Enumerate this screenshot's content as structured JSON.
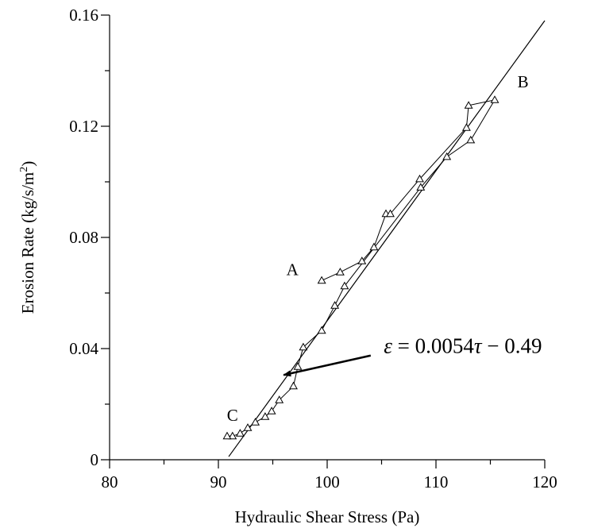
{
  "chart_data": {
    "type": "scatter",
    "title": "",
    "xlabel": "Hydraulic Shear Stress (Pa)",
    "ylabel_main": "Erosion Rate (kg/s/m",
    "ylabel_sup": "2",
    "ylabel_end": ")",
    "xlim": [
      80,
      120
    ],
    "ylim": [
      0,
      0.16
    ],
    "xticks": [
      80,
      90,
      100,
      110,
      120
    ],
    "xtick_labels": [
      "80",
      "90",
      "100",
      "110",
      "120"
    ],
    "yticks": [
      0,
      0.04,
      0.08,
      0.12,
      0.16
    ],
    "ytick_labels": [
      "0",
      "0.04",
      "0.08",
      "0.12",
      "0.16"
    ],
    "grid": false,
    "series": [
      {
        "marker": "triangle",
        "connected": true,
        "points": [
          [
            99.5,
            0.0645
          ],
          [
            101.2,
            0.0675
          ],
          [
            103.2,
            0.0715
          ],
          [
            104.3,
            0.0765
          ],
          [
            105.4,
            0.0885
          ],
          [
            105.8,
            0.0885
          ],
          [
            108.5,
            0.101
          ],
          [
            112.8,
            0.1195
          ],
          [
            113.0,
            0.1275
          ],
          [
            115.4,
            0.1295
          ],
          [
            113.2,
            0.115
          ],
          [
            111.0,
            0.109
          ],
          [
            108.6,
            0.098
          ],
          [
            101.6,
            0.0625
          ],
          [
            100.7,
            0.0555
          ],
          [
            99.5,
            0.0465
          ],
          [
            97.8,
            0.0405
          ],
          [
            97.3,
            0.0335
          ],
          [
            96.9,
            0.0265
          ],
          [
            95.6,
            0.0215
          ],
          [
            94.9,
            0.0175
          ],
          [
            94.3,
            0.0155
          ],
          [
            93.4,
            0.0135
          ],
          [
            92.7,
            0.0115
          ],
          [
            92.0,
            0.0095
          ],
          [
            91.3,
            0.0085
          ],
          [
            90.8,
            0.0085
          ]
        ]
      }
    ],
    "fit_line": {
      "slope": 0.0054,
      "intercept": -0.49,
      "x_range": [
        90.95,
        120
      ]
    },
    "point_labels": [
      {
        "text": "A",
        "x": 96.8,
        "y": 0.0665
      },
      {
        "text": "B",
        "x": 118.0,
        "y": 0.134
      },
      {
        "text": "C",
        "x": 91.3,
        "y": 0.014
      }
    ],
    "annotation": {
      "epsilon": "ε",
      "mid": " = 0.0054",
      "tau": "τ",
      "end": " − 0.49",
      "arrow_tip": [
        96.0,
        0.0305
      ],
      "arrow_tail": [
        104.0,
        0.0375
      ],
      "text_anchor": [
        105.2,
        0.0385
      ]
    }
  }
}
